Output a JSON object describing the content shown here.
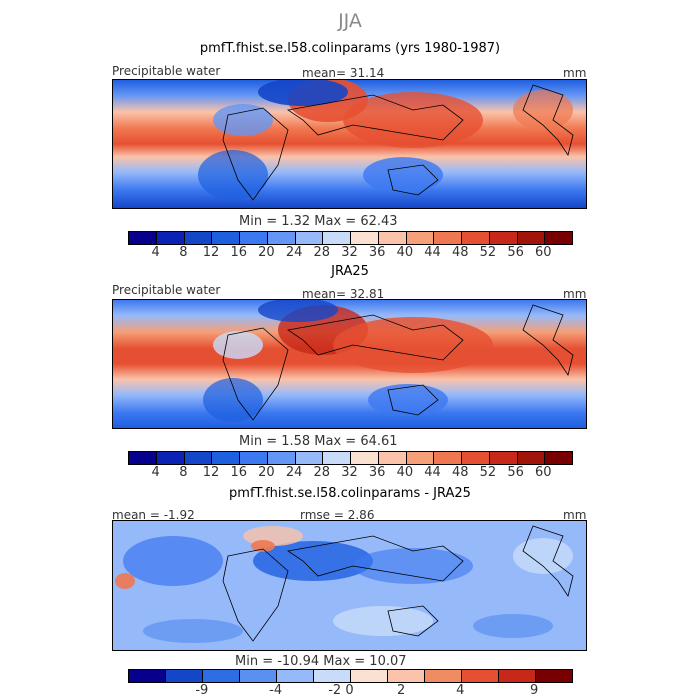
{
  "figure": {
    "season": "JJA",
    "units": "mm"
  },
  "panels": [
    {
      "title": "pmfT.fhist.se.l58.colinparams (yrs 1980-1987)",
      "variable": "Precipitable water",
      "mean_text": "mean=   31.14",
      "units": "mm",
      "minmax_text": "Min =    1.32  Max =   62.43",
      "min": 1.32,
      "max": 62.43
    },
    {
      "title": "JRA25",
      "variable": "Precipitable water",
      "mean_text": "mean=   32.81",
      "units": "mm",
      "minmax_text": "Min =    1.58  Max =   64.61",
      "min": 1.58,
      "max": 64.61
    },
    {
      "title": "pmfT.fhist.se.l58.colinparams - JRA25",
      "mean_text": "mean =   -1.92",
      "rmse_text": "rmse =     2.86",
      "units": "mm",
      "minmax_text": "Min = -10.94  Max =   10.07",
      "min": -10.94,
      "max": 10.07
    }
  ],
  "colorbar_abs": {
    "labels": [
      "4",
      "8",
      "12",
      "16",
      "20",
      "24",
      "28",
      "32",
      "36",
      "40",
      "44",
      "48",
      "52",
      "56",
      "60"
    ],
    "colors": [
      "#07008d",
      "#0a23b4",
      "#1446c8",
      "#1e5fe0",
      "#3c78f0",
      "#6496f5",
      "#96b9fa",
      "#c8dcfa",
      "#fae1d2",
      "#fac3aa",
      "#f5a078",
      "#f07850",
      "#e65032",
      "#c82819",
      "#a0140a",
      "#780000"
    ]
  },
  "colorbar_diff": {
    "labels": [
      "-9",
      "-4",
      "-2",
      "0",
      "2",
      "4",
      "9"
    ],
    "colors": [
      "#07008d",
      "#1446c8",
      "#2d6ee6",
      "#5a91f0",
      "#96b9fa",
      "#c8dcfa",
      "#fae1d2",
      "#fac3aa",
      "#f08c64",
      "#e65032",
      "#c82819",
      "#780000"
    ]
  }
}
